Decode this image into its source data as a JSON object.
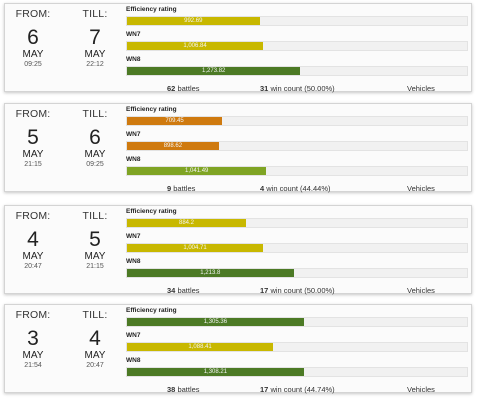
{
  "labels": {
    "from": "FROM:",
    "till": "TILL:",
    "efficiency": "Efficiency rating",
    "wn7": "WN7",
    "wn8": "WN8",
    "battles_suffix": "battles",
    "wins_suffix": "win count",
    "vehicles": "Vehicles"
  },
  "colors": {
    "yellow_green": "#c8b800",
    "orange": "#cf7a0f",
    "light_green": "#7fa424",
    "dark_green": "#4c7a25"
  },
  "sessions": [
    {
      "from": {
        "day": "6",
        "month": "MAY",
        "time": "09:25"
      },
      "till": {
        "day": "7",
        "month": "MAY",
        "time": "22:12"
      },
      "efficiency": {
        "value": "992.69",
        "fill": 0.39,
        "color": "yellow_green"
      },
      "wn7": {
        "value": "1,006.84",
        "fill": 0.4,
        "color": "yellow_green"
      },
      "wn8": {
        "value": "1,273.82",
        "fill": 0.51,
        "color": "dark_green"
      },
      "battles": "62",
      "wins": "31",
      "win_rate": "(50.00%)"
    },
    {
      "from": {
        "day": "5",
        "month": "MAY",
        "time": "21:15"
      },
      "till": {
        "day": "6",
        "month": "MAY",
        "time": "09:25"
      },
      "efficiency": {
        "value": "709.45",
        "fill": 0.28,
        "color": "orange"
      },
      "wn7": {
        "value": "898.62",
        "fill": 0.27,
        "color": "orange"
      },
      "wn8": {
        "value": "1,041.49",
        "fill": 0.41,
        "color": "light_green"
      },
      "battles": "9",
      "wins": "4",
      "win_rate": "(44.44%)"
    },
    {
      "from": {
        "day": "4",
        "month": "MAY",
        "time": "20:47"
      },
      "till": {
        "day": "5",
        "month": "MAY",
        "time": "21:15"
      },
      "efficiency": {
        "value": "884.2",
        "fill": 0.35,
        "color": "yellow_green"
      },
      "wn7": {
        "value": "1,004.71",
        "fill": 0.4,
        "color": "yellow_green"
      },
      "wn8": {
        "value": "1,213.8",
        "fill": 0.49,
        "color": "dark_green"
      },
      "battles": "34",
      "wins": "17",
      "win_rate": "(50.00%)"
    },
    {
      "from": {
        "day": "3",
        "month": "MAY",
        "time": "21:54"
      },
      "till": {
        "day": "4",
        "month": "MAY",
        "time": "20:47"
      },
      "efficiency": {
        "value": "1,305.36",
        "fill": 0.52,
        "color": "dark_green"
      },
      "wn7": {
        "value": "1,088.41",
        "fill": 0.43,
        "color": "yellow_green"
      },
      "wn8": {
        "value": "1,308.21",
        "fill": 0.52,
        "color": "dark_green"
      },
      "battles": "38",
      "wins": "17",
      "win_rate": "(44.74%)"
    }
  ]
}
